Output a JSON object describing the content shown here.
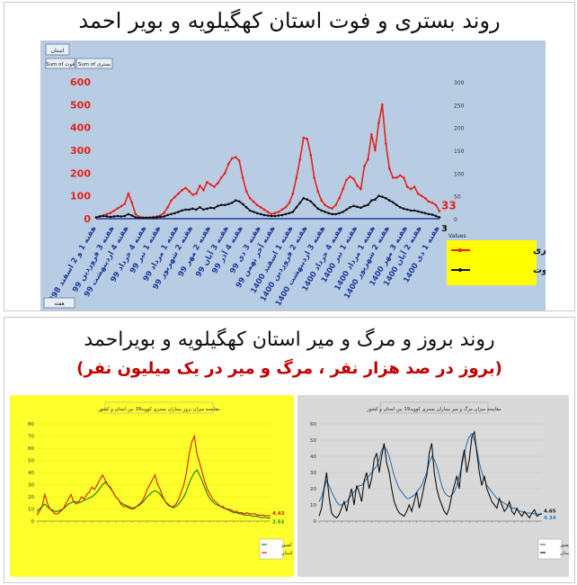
{
  "top_title": "روند بستری و فوت استان کهگیلویه و بویر احمد",
  "bottom_title": "روند بروز و مرگ و میر استان کهگیلویه و بویراحمد",
  "bottom_subtitle": "(بروز در صد هزار نفر ، مرگ و میر در یک میلیون نفر)",
  "pivot": {
    "filter_label": "استان",
    "field1": "Sum of فوت",
    "field2": "Sum of بستری",
    "week_button": "هفته",
    "legend_title": "Values",
    "end_label_1": "33",
    "end_label_2": "3"
  },
  "colors": {
    "hosp": "#e2231a",
    "death": "#111111",
    "panel_bg": "#b8cce4",
    "legend_bg": "#ffff00"
  },
  "chart_data": [
    {
      "type": "line",
      "title": "",
      "categories": [
        "هفته 1 و 2 اسفند 1398",
        "هفته 3 فروردین 99",
        "هفته 4 اردیبهشت 99",
        "هفته 4 خرداد 99",
        "هفته 1 تیر 99",
        "هفته 1 مرداد 99",
        "هفته 2 شهریور 99",
        "هفته 2 مهر 99",
        "هفته 3 آبان 99",
        "هفته 4 آذر 99",
        "هفته 3 دی 99",
        "هفته آخر بهمن 99",
        "هفته 1 اسفند 1400",
        "هفته 2 فروردین 1400",
        "هفته 3 اردیبهشت 1400",
        "هفته 4 خرداد 1400",
        "هفته 1 تیر 1400",
        "هفته 1 مرداد 1400",
        "هفته 2 شهریور 1400",
        "هفته 3 مهر 1400",
        "هفته 2 آبان 1400",
        "هفته 1 دی 1400"
      ],
      "x": [
        0,
        1,
        2,
        3,
        4,
        5,
        6,
        7,
        8,
        9,
        10,
        11,
        12,
        13,
        14,
        15,
        16,
        17,
        18,
        19,
        20,
        21,
        22,
        23,
        24,
        25,
        26,
        27,
        28,
        29,
        30,
        31,
        32,
        33,
        34,
        35,
        36,
        37,
        38,
        39,
        40,
        41,
        42,
        43,
        44,
        45,
        46,
        47,
        48,
        49,
        50,
        51,
        52,
        53,
        54,
        55,
        56,
        57,
        58,
        59,
        60,
        61,
        62,
        63,
        64,
        65,
        66,
        67,
        68,
        69,
        70,
        71,
        72,
        73,
        74,
        75,
        76,
        77,
        78,
        79,
        80,
        81,
        82,
        83,
        84,
        85,
        86,
        87,
        88,
        89,
        90,
        91,
        92,
        93,
        94,
        95,
        96
      ],
      "series": [
        {
          "name": "Sum of بستری",
          "axis": "left",
          "color": "#e2231a",
          "values": [
            5,
            10,
            15,
            20,
            25,
            35,
            45,
            55,
            65,
            110,
            70,
            20,
            8,
            5,
            5,
            5,
            8,
            10,
            15,
            25,
            50,
            80,
            95,
            110,
            125,
            135,
            120,
            105,
            110,
            145,
            125,
            160,
            150,
            140,
            155,
            180,
            200,
            240,
            265,
            270,
            255,
            180,
            120,
            90,
            75,
            60,
            50,
            40,
            30,
            20,
            25,
            30,
            40,
            50,
            70,
            110,
            180,
            260,
            355,
            350,
            280,
            180,
            120,
            80,
            60,
            50,
            45,
            60,
            90,
            130,
            170,
            185,
            175,
            145,
            130,
            230,
            260,
            370,
            300,
            420,
            500,
            330,
            220,
            180,
            180,
            190,
            180,
            140,
            130,
            140,
            110,
            100,
            90,
            75,
            70,
            60,
            33
          ]
        },
        {
          "name": "Sum of فوت",
          "axis": "right",
          "color": "#111111",
          "values": [
            3,
            5,
            6,
            5,
            4,
            5,
            6,
            5,
            6,
            10,
            7,
            3,
            2,
            2,
            2,
            2,
            2,
            3,
            4,
            5,
            8,
            10,
            12,
            15,
            18,
            20,
            20,
            22,
            20,
            25,
            20,
            22,
            24,
            23,
            28,
            30,
            30,
            32,
            35,
            40,
            38,
            32,
            25,
            18,
            15,
            12,
            10,
            8,
            7,
            6,
            6,
            7,
            8,
            10,
            12,
            15,
            25,
            35,
            45,
            42,
            38,
            30,
            22,
            18,
            15,
            12,
            10,
            10,
            12,
            15,
            20,
            25,
            28,
            26,
            24,
            28,
            30,
            40,
            42,
            50,
            48,
            45,
            40,
            36,
            30,
            25,
            22,
            20,
            18,
            18,
            16,
            14,
            12,
            10,
            9,
            6,
            3
          ]
        }
      ],
      "ylim_left": [
        0,
        600
      ],
      "yticks_left": [
        0,
        100,
        200,
        300,
        400,
        500,
        600
      ],
      "ylim_right": [
        0,
        300
      ],
      "yticks_right": [
        0,
        50,
        100,
        150,
        200,
        250,
        300
      ],
      "legend": "bottom-right"
    },
    {
      "type": "line",
      "title": "مقایسه میزان بروز بیماران بستری کووید19 بین استان و کشور",
      "xlabel": "",
      "ylabel": "",
      "x": [
        0,
        1,
        2,
        3,
        4,
        5,
        6,
        7,
        8,
        9,
        10,
        11,
        12,
        13,
        14,
        15,
        16,
        17,
        18,
        19,
        20,
        21,
        22,
        23,
        24,
        25,
        26,
        27,
        28,
        29,
        30,
        31,
        32,
        33,
        34,
        35,
        36,
        37,
        38,
        39,
        40,
        41,
        42,
        43,
        44,
        45,
        46,
        47,
        48,
        49,
        50,
        51,
        52,
        53,
        54,
        55,
        56,
        57,
        58,
        59,
        60,
        61,
        62,
        63,
        64,
        65,
        66,
        67,
        68,
        69,
        70,
        71,
        72,
        73,
        74,
        75,
        76,
        77,
        78,
        79,
        80,
        81,
        82,
        83,
        84,
        85,
        86,
        87,
        88,
        89
      ],
      "series": [
        {
          "name": "کشور",
          "color": "#1a7a1a",
          "values": [
            8,
            10,
            12,
            14,
            12,
            10,
            9,
            8,
            8,
            9,
            10,
            12,
            14,
            15,
            16,
            16,
            15,
            16,
            17,
            18,
            19,
            20,
            22,
            24,
            27,
            30,
            32,
            30,
            27,
            24,
            20,
            18,
            15,
            14,
            13,
            12,
            11,
            11,
            12,
            13,
            15,
            17,
            20,
            22,
            24,
            25,
            24,
            22,
            19,
            16,
            13,
            12,
            11,
            12,
            14,
            17,
            20,
            25,
            31,
            36,
            40,
            42,
            38,
            33,
            27,
            22,
            18,
            16,
            14,
            13,
            12,
            11,
            10,
            9,
            8,
            7,
            7,
            6,
            6,
            5,
            5,
            5,
            4,
            4,
            4,
            3,
            3,
            3,
            2.5,
            2.51
          ]
        },
        {
          "name": "استان",
          "color": "#cc2200",
          "values": [
            5,
            8,
            12,
            22,
            15,
            10,
            8,
            6,
            6,
            8,
            10,
            14,
            18,
            22,
            16,
            14,
            16,
            20,
            18,
            22,
            24,
            28,
            26,
            30,
            34,
            38,
            34,
            30,
            28,
            24,
            20,
            18,
            14,
            12,
            12,
            11,
            10,
            10,
            12,
            14,
            16,
            20,
            26,
            30,
            34,
            38,
            30,
            26,
            20,
            16,
            14,
            12,
            12,
            14,
            18,
            24,
            30,
            40,
            55,
            65,
            70,
            55,
            48,
            40,
            32,
            26,
            22,
            18,
            16,
            14,
            12,
            12,
            10,
            10,
            9,
            8,
            8,
            7,
            7,
            6,
            7,
            6,
            6,
            6,
            5,
            5,
            5,
            4.5,
            4.4,
            4.43
          ]
        }
      ],
      "ylim": [
        0,
        80
      ],
      "yticks": [
        0,
        10,
        20,
        30,
        40,
        50,
        60,
        70,
        80
      ],
      "legend": "bottom-right",
      "end_labels": [
        "4.43",
        "2.51"
      ]
    },
    {
      "type": "line",
      "title": "مقایسه میزان مرگ و میر بیماران بستری کووید19 بین استان و کشور",
      "xlabel": "",
      "ylabel": "",
      "x": [
        0,
        1,
        2,
        3,
        4,
        5,
        6,
        7,
        8,
        9,
        10,
        11,
        12,
        13,
        14,
        15,
        16,
        17,
        18,
        19,
        20,
        21,
        22,
        23,
        24,
        25,
        26,
        27,
        28,
        29,
        30,
        31,
        32,
        33,
        34,
        35,
        36,
        37,
        38,
        39,
        40,
        41,
        42,
        43,
        44,
        45,
        46,
        47,
        48,
        49,
        50,
        51,
        52,
        53,
        54,
        55,
        56,
        57,
        58,
        59,
        60,
        61,
        62,
        63,
        64,
        65,
        66,
        67,
        68,
        69,
        70,
        71,
        72,
        73,
        74,
        75,
        76,
        77,
        78,
        79,
        80,
        81,
        82,
        83,
        84,
        85,
        86,
        87,
        88,
        89
      ],
      "series": [
        {
          "name": "کشور",
          "color": "#2e75b6",
          "values": [
            12,
            15,
            20,
            25,
            22,
            18,
            15,
            12,
            10,
            10,
            11,
            12,
            14,
            16,
            18,
            20,
            22,
            22,
            24,
            26,
            28,
            30,
            32,
            34,
            38,
            44,
            46,
            44,
            40,
            34,
            28,
            24,
            20,
            18,
            16,
            14,
            14,
            15,
            16,
            18,
            20,
            22,
            26,
            30,
            36,
            40,
            38,
            34,
            28,
            22,
            18,
            16,
            15,
            16,
            18,
            22,
            28,
            34,
            42,
            48,
            52,
            54,
            50,
            44,
            36,
            30,
            26,
            22,
            20,
            18,
            16,
            14,
            13,
            12,
            11,
            10,
            9,
            8,
            8,
            7,
            6,
            6,
            5,
            5,
            5,
            5,
            4.5,
            4.4,
            4.3,
            4.34
          ]
        },
        {
          "name": "استان",
          "color": "#111111",
          "values": [
            3,
            8,
            20,
            30,
            15,
            5,
            3,
            2,
            4,
            8,
            12,
            6,
            14,
            20,
            10,
            22,
            18,
            12,
            25,
            30,
            20,
            26,
            38,
            42,
            30,
            40,
            48,
            36,
            30,
            20,
            12,
            8,
            5,
            4,
            3,
            6,
            10,
            6,
            12,
            18,
            8,
            14,
            22,
            28,
            42,
            48,
            30,
            20,
            14,
            10,
            6,
            4,
            8,
            16,
            22,
            28,
            20,
            36,
            44,
            30,
            38,
            52,
            55,
            42,
            30,
            22,
            28,
            20,
            16,
            12,
            10,
            8,
            14,
            10,
            6,
            8,
            12,
            6,
            4,
            8,
            5,
            3,
            6,
            4,
            2,
            5,
            7,
            3,
            4,
            4.65
          ]
        }
      ],
      "ylim": [
        0,
        60
      ],
      "yticks": [
        0,
        10,
        20,
        30,
        40,
        50,
        60
      ],
      "legend": "bottom-right",
      "end_labels": [
        "4.65",
        "4.34"
      ]
    }
  ]
}
